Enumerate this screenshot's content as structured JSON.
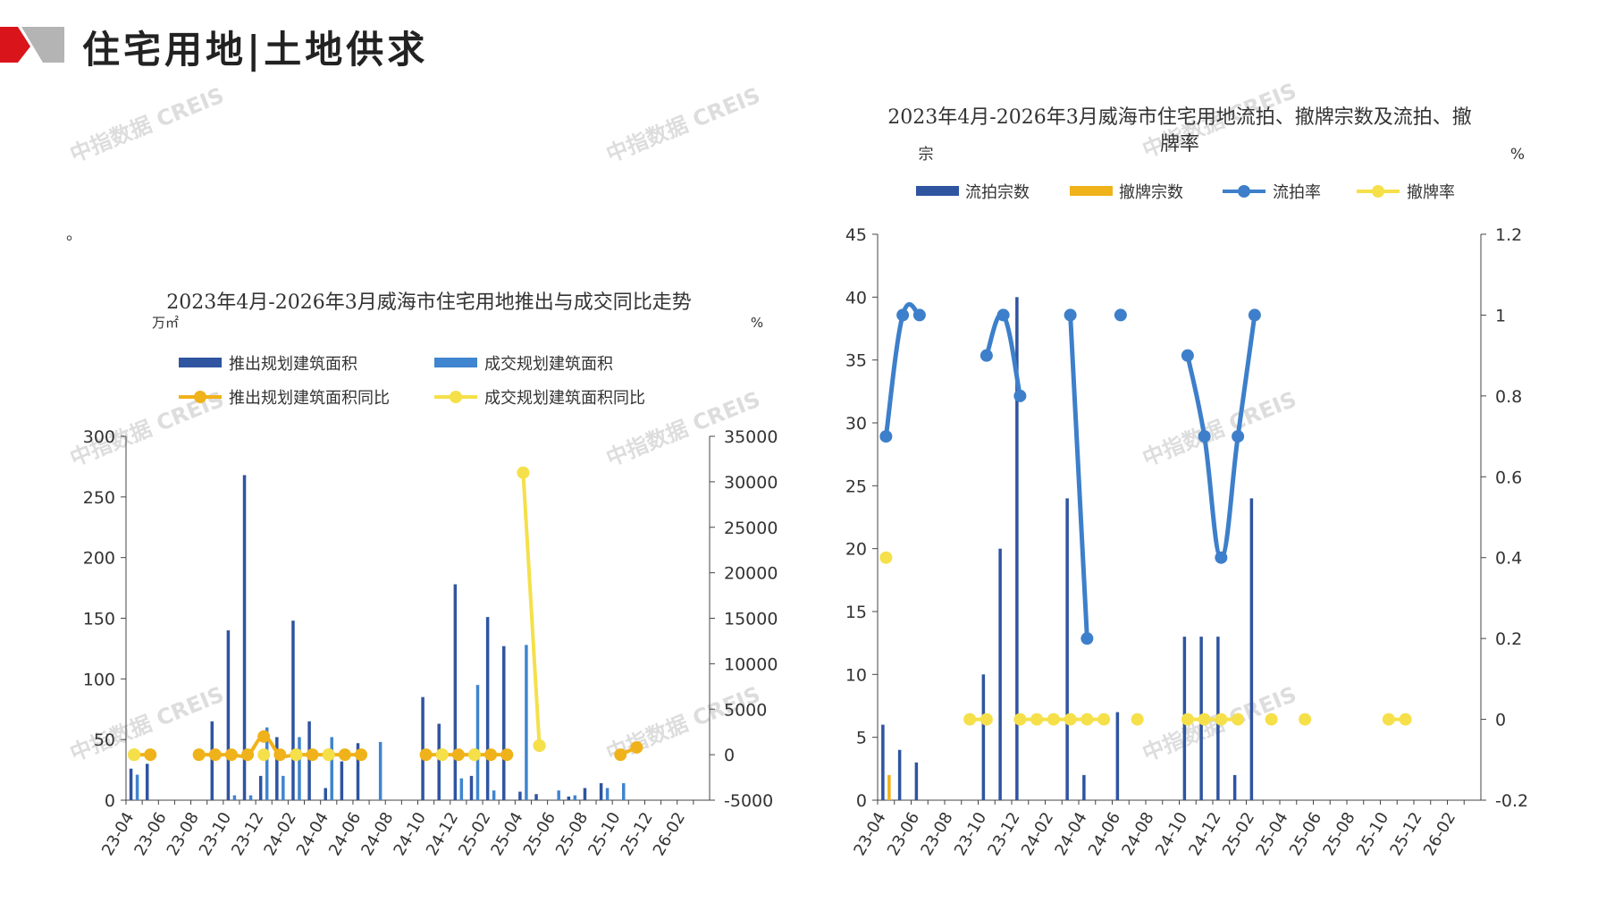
{
  "page": {
    "title": "住宅用地|土地供求",
    "note": "。",
    "watermark": "中指数据 CREIS"
  },
  "colors": {
    "corner_red": "#d9141b",
    "corner_gray": "#b4b4b4",
    "dark_blue": "#2f54a0",
    "light_blue": "#3f85cf",
    "orange": "#f0b21a",
    "yellow": "#f5e04a",
    "line_blue": "#3d7fca"
  },
  "chart_data": [
    {
      "type": "bar",
      "title": "2023年4月-2026年3月威海市住宅用地推出与成交同比走势",
      "left_unit": "万㎡",
      "right_unit": "%",
      "ylim": [
        0,
        300
      ],
      "y_ticks": [
        0,
        50,
        100,
        150,
        200,
        250,
        300
      ],
      "y2lim": [
        -5000,
        35000
      ],
      "y2_ticks": [
        -5000,
        0,
        5000,
        10000,
        15000,
        20000,
        25000,
        30000,
        35000
      ],
      "x_ticks": [
        "23-04",
        "23-06",
        "23-08",
        "23-10",
        "23-12",
        "24-02",
        "24-04",
        "24-06",
        "24-08",
        "24-10",
        "24-12",
        "25-02",
        "25-04",
        "25-06",
        "25-08",
        "25-10",
        "25-12",
        "26-02"
      ],
      "categories": [
        "23-04",
        "23-05",
        "23-06",
        "23-07",
        "23-08",
        "23-09",
        "23-10",
        "23-11",
        "23-12",
        "24-01",
        "24-02",
        "24-03",
        "24-04",
        "24-05",
        "24-06",
        "24-07",
        "24-08",
        "24-09",
        "24-10",
        "24-11",
        "24-12",
        "25-01",
        "25-02",
        "25-03",
        "25-04",
        "25-05",
        "25-06",
        "25-07",
        "25-08",
        "25-09",
        "25-10",
        "25-11",
        "25-12",
        "26-01",
        "26-02",
        "26-03"
      ],
      "series": [
        {
          "name": "推出规划建筑面积",
          "kind": "bar",
          "axis": "left",
          "values": [
            26,
            30,
            0,
            0,
            0,
            65,
            140,
            268,
            20,
            52,
            148,
            65,
            10,
            32,
            47,
            0,
            0,
            0,
            85,
            63,
            178,
            20,
            151,
            127,
            7,
            5,
            0,
            3,
            10,
            14,
            0,
            0,
            0,
            0,
            0,
            0
          ]
        },
        {
          "name": "成交规划建筑面积",
          "kind": "bar",
          "axis": "left",
          "values": [
            21,
            0,
            0,
            0,
            0,
            0,
            4,
            4,
            60,
            20,
            52,
            0,
            52,
            0,
            0,
            48,
            0,
            0,
            0,
            0,
            18,
            95,
            8,
            0,
            128,
            0,
            8,
            4,
            0,
            10,
            14,
            0,
            0,
            0,
            0,
            0
          ]
        },
        {
          "name": "推出规划建筑面积同比",
          "kind": "line",
          "axis": "right",
          "values": [
            0,
            0,
            null,
            null,
            0,
            0,
            0,
            0,
            2000,
            0,
            0,
            0,
            0,
            0,
            0,
            null,
            null,
            null,
            0,
            0,
            0,
            0,
            0,
            0,
            null,
            1000,
            null,
            null,
            null,
            null,
            0,
            800,
            null,
            null,
            null,
            null
          ]
        },
        {
          "name": "成交规划建筑面积同比",
          "kind": "line",
          "axis": "right",
          "values": [
            0,
            null,
            null,
            null,
            null,
            null,
            null,
            null,
            0,
            null,
            0,
            null,
            0,
            null,
            null,
            null,
            null,
            null,
            null,
            0,
            null,
            0,
            null,
            null,
            31000,
            1000,
            null,
            null,
            null,
            null,
            null,
            null,
            null,
            null,
            null,
            null
          ]
        }
      ]
    },
    {
      "type": "bar",
      "title_line1": "2023年4月-2026年3月威海市住宅用地流拍、撤牌宗数及流拍、撤",
      "title_line2": "牌率",
      "left_unit": "宗",
      "right_unit": "%",
      "ylim": [
        0,
        45
      ],
      "y_ticks": [
        0,
        5,
        10,
        15,
        20,
        25,
        30,
        35,
        40,
        45
      ],
      "y2lim": [
        -0.2,
        1.2
      ],
      "y2_ticks": [
        "-0.2",
        "0",
        "0.2",
        "0.4",
        "0.6",
        "0.8",
        "1",
        "1.2"
      ],
      "x_ticks": [
        "23-04",
        "23-06",
        "23-08",
        "23-10",
        "23-12",
        "24-02",
        "24-04",
        "24-06",
        "24-08",
        "24-10",
        "24-12",
        "25-02",
        "25-04",
        "25-06",
        "25-08",
        "25-10",
        "25-12",
        "26-02"
      ],
      "categories": [
        "23-04",
        "23-05",
        "23-06",
        "23-07",
        "23-08",
        "23-09",
        "23-10",
        "23-11",
        "23-12",
        "24-01",
        "24-02",
        "24-03",
        "24-04",
        "24-05",
        "24-06",
        "24-07",
        "24-08",
        "24-09",
        "24-10",
        "24-11",
        "24-12",
        "25-01",
        "25-02",
        "25-03",
        "25-04",
        "25-05",
        "25-06",
        "25-07",
        "25-08",
        "25-09",
        "25-10",
        "25-11",
        "25-12",
        "26-01",
        "26-02",
        "26-03"
      ],
      "series": [
        {
          "name": "流拍宗数",
          "kind": "bar",
          "axis": "left",
          "values": [
            6,
            4,
            3,
            0,
            0,
            0,
            10,
            20,
            40,
            0,
            0,
            24,
            2,
            0,
            7,
            0,
            0,
            0,
            13,
            13,
            13,
            2,
            24,
            0,
            0,
            0,
            0,
            0,
            0,
            0,
            0,
            0,
            0,
            0,
            0,
            0
          ]
        },
        {
          "name": "撤牌宗数",
          "kind": "bar",
          "axis": "left",
          "values": [
            2,
            0,
            0,
            0,
            0,
            0,
            0,
            0,
            0,
            0,
            0,
            0,
            0,
            0,
            0,
            0,
            0,
            0,
            0,
            0,
            0,
            0,
            0,
            0,
            0,
            0,
            0,
            0,
            0,
            0,
            0,
            0,
            0,
            0,
            0,
            0
          ]
        },
        {
          "name": "流拍率",
          "kind": "line",
          "axis": "right",
          "values": [
            0.7,
            1,
            1,
            null,
            null,
            null,
            0.9,
            1,
            0.8,
            null,
            null,
            1,
            0.2,
            null,
            1,
            null,
            null,
            null,
            0.9,
            0.7,
            0.4,
            0.7,
            1,
            null,
            null,
            null,
            null,
            null,
            null,
            null,
            null,
            null,
            null,
            null,
            null,
            null
          ]
        },
        {
          "name": "撤牌率",
          "kind": "line",
          "axis": "right",
          "values": [
            0.4,
            null,
            null,
            null,
            null,
            0,
            0,
            null,
            0,
            0,
            0,
            0,
            0,
            0,
            null,
            0,
            null,
            null,
            0,
            0,
            0,
            0,
            null,
            0,
            null,
            0,
            null,
            null,
            null,
            null,
            0,
            0,
            null,
            null,
            null,
            null
          ]
        }
      ]
    }
  ]
}
